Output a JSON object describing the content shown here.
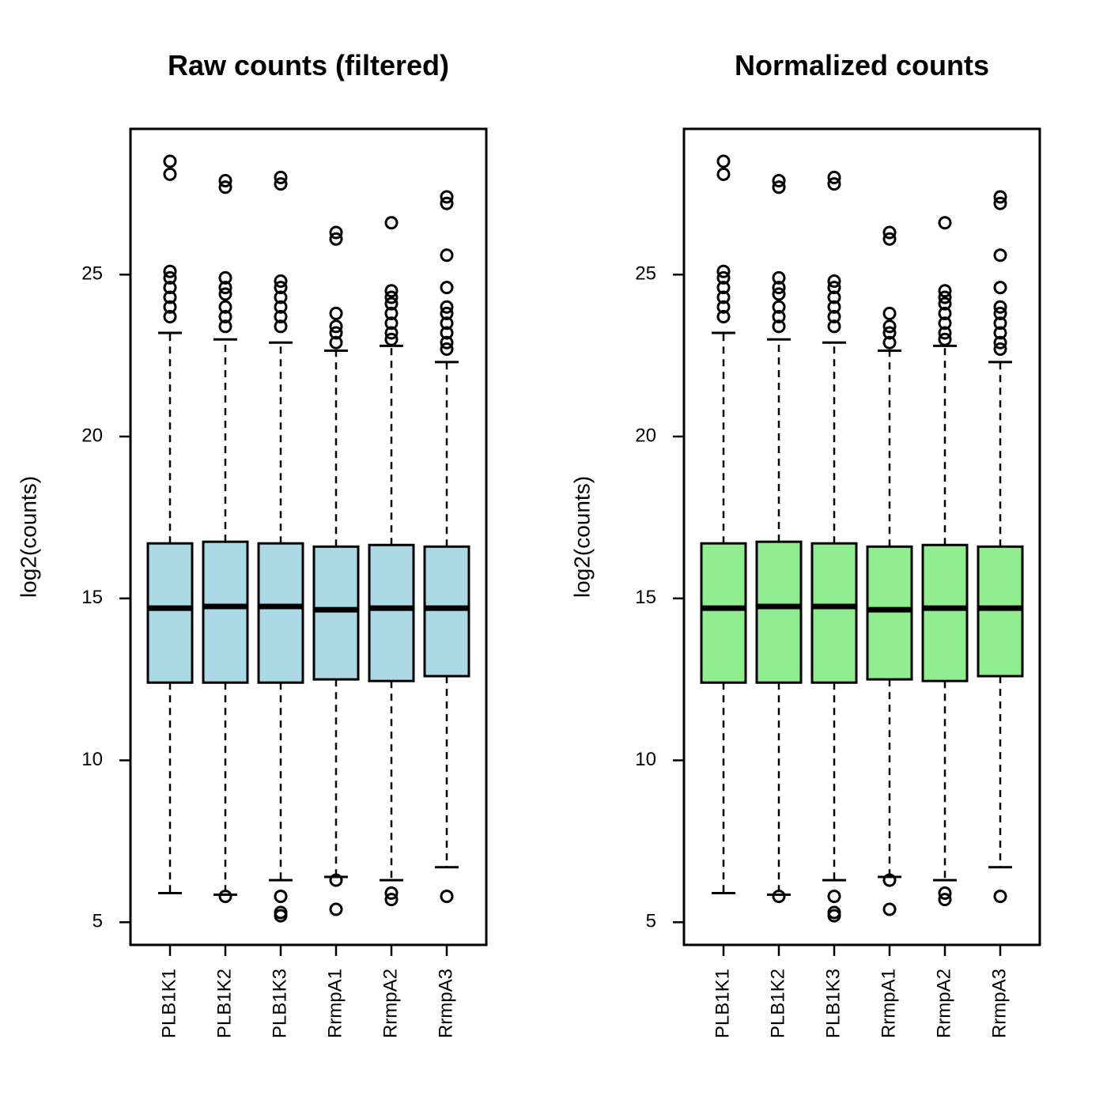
{
  "chart_data": [
    {
      "type": "boxplot",
      "title": "Raw counts (filtered)",
      "xlabel": "",
      "ylabel": "log2(counts)",
      "ylim": [
        4.3,
        29.5
      ],
      "yticks": [
        5,
        10,
        15,
        20,
        25
      ],
      "legend": "none",
      "grid": false,
      "fill_color": "#add8e6",
      "categories": [
        "PLB1K1",
        "PLB1K2",
        "PLB1K3",
        "RrmpA1",
        "RrmpA2",
        "RrmpA3"
      ],
      "boxes": [
        {
          "whisker_low": 5.9,
          "q1": 12.4,
          "median": 14.7,
          "q3": 16.7,
          "whisker_high": 23.2,
          "outliers": [
            28.5,
            28.1,
            25.1,
            24.9,
            24.6,
            24.3,
            24.0,
            23.7
          ]
        },
        {
          "whisker_low": 5.85,
          "q1": 12.4,
          "median": 14.75,
          "q3": 16.75,
          "whisker_high": 23.0,
          "outliers": [
            27.9,
            27.7,
            24.9,
            24.6,
            24.4,
            24.0,
            23.7,
            23.4,
            5.8
          ]
        },
        {
          "whisker_low": 6.3,
          "q1": 12.4,
          "median": 14.75,
          "q3": 16.7,
          "whisker_high": 22.9,
          "outliers": [
            28.0,
            27.8,
            24.8,
            24.6,
            24.3,
            24.0,
            23.7,
            23.4,
            5.8,
            5.3,
            5.2
          ]
        },
        {
          "whisker_low": 6.4,
          "q1": 12.5,
          "median": 14.65,
          "q3": 16.6,
          "whisker_high": 22.65,
          "outliers": [
            26.3,
            26.1,
            23.8,
            23.4,
            23.2,
            22.9,
            6.3,
            5.4
          ]
        },
        {
          "whisker_low": 6.3,
          "q1": 12.45,
          "median": 14.7,
          "q3": 16.65,
          "whisker_high": 22.8,
          "outliers": [
            26.6,
            24.5,
            24.3,
            24.1,
            23.8,
            23.5,
            23.2,
            23.0,
            5.9,
            5.7
          ]
        },
        {
          "whisker_low": 6.7,
          "q1": 12.6,
          "median": 14.7,
          "q3": 16.6,
          "whisker_high": 22.3,
          "outliers": [
            27.4,
            27.2,
            25.6,
            24.6,
            24.0,
            23.8,
            23.5,
            23.2,
            22.9,
            22.7,
            5.8
          ]
        }
      ]
    },
    {
      "type": "boxplot",
      "title": "Normalized counts",
      "xlabel": "",
      "ylabel": "log2(counts)",
      "ylim": [
        4.3,
        29.5
      ],
      "yticks": [
        5,
        10,
        15,
        20,
        25
      ],
      "legend": "none",
      "grid": false,
      "fill_color": "#90ee90",
      "categories": [
        "PLB1K1",
        "PLB1K2",
        "PLB1K3",
        "RrmpA1",
        "RrmpA2",
        "RrmpA3"
      ],
      "boxes": [
        {
          "whisker_low": 5.9,
          "q1": 12.4,
          "median": 14.7,
          "q3": 16.7,
          "whisker_high": 23.2,
          "outliers": [
            28.5,
            28.1,
            25.1,
            24.9,
            24.6,
            24.3,
            24.0,
            23.7
          ]
        },
        {
          "whisker_low": 5.85,
          "q1": 12.4,
          "median": 14.75,
          "q3": 16.75,
          "whisker_high": 23.0,
          "outliers": [
            27.9,
            27.7,
            24.9,
            24.6,
            24.4,
            24.0,
            23.7,
            23.4,
            5.8
          ]
        },
        {
          "whisker_low": 6.3,
          "q1": 12.4,
          "median": 14.75,
          "q3": 16.7,
          "whisker_high": 22.9,
          "outliers": [
            28.0,
            27.8,
            24.8,
            24.6,
            24.3,
            24.0,
            23.7,
            23.4,
            5.8,
            5.3,
            5.2
          ]
        },
        {
          "whisker_low": 6.4,
          "q1": 12.5,
          "median": 14.65,
          "q3": 16.6,
          "whisker_high": 22.65,
          "outliers": [
            26.3,
            26.1,
            23.8,
            23.4,
            23.2,
            22.9,
            6.3,
            5.4
          ]
        },
        {
          "whisker_low": 6.3,
          "q1": 12.45,
          "median": 14.7,
          "q3": 16.65,
          "whisker_high": 22.8,
          "outliers": [
            26.6,
            24.5,
            24.3,
            24.1,
            23.8,
            23.5,
            23.2,
            23.0,
            5.9,
            5.7
          ]
        },
        {
          "whisker_low": 6.7,
          "q1": 12.6,
          "median": 14.7,
          "q3": 16.6,
          "whisker_high": 22.3,
          "outliers": [
            27.4,
            27.2,
            25.6,
            24.6,
            24.0,
            23.8,
            23.5,
            23.2,
            22.9,
            22.7,
            5.8
          ]
        }
      ]
    }
  ]
}
